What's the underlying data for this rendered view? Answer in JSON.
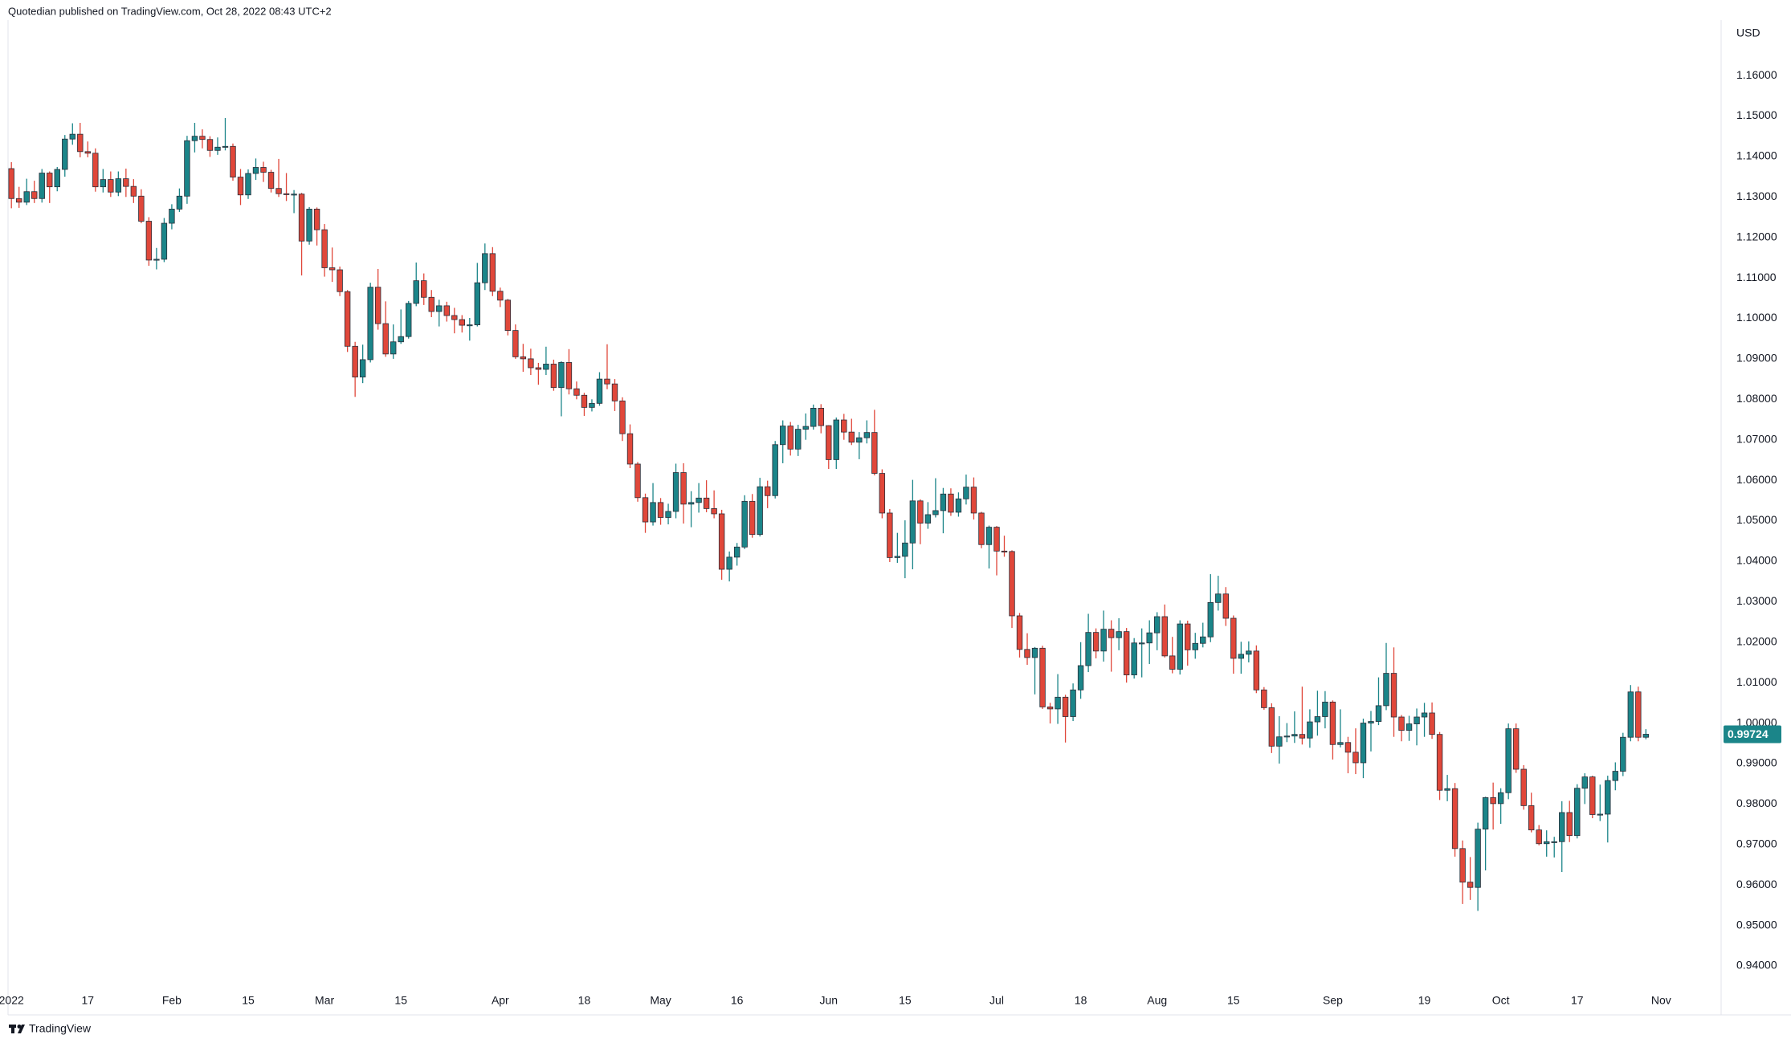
{
  "chart_data": {
    "type": "candlestick",
    "title": "Quotedian published on TradingView.com, Oct 28, 2022 08:43 UTC+2",
    "currency": "USD",
    "brand": "TradingView",
    "up_color": "#1b8589",
    "down_color": "#e0473a",
    "border_color": "#2a2e39",
    "grid": false,
    "ylim": [
      0.9279,
      1.1737
    ],
    "yticks": [
      {
        "value": 0.94,
        "label": "0.94000"
      },
      {
        "value": 0.95,
        "label": "0.95000"
      },
      {
        "value": 0.96,
        "label": "0.96000"
      },
      {
        "value": 0.97,
        "label": "0.97000"
      },
      {
        "value": 0.98,
        "label": "0.98000"
      },
      {
        "value": 0.99,
        "label": "0.99000"
      },
      {
        "value": 1.0,
        "label": "1.00000"
      },
      {
        "value": 1.01,
        "label": "1.01000"
      },
      {
        "value": 1.02,
        "label": "1.02000"
      },
      {
        "value": 1.03,
        "label": "1.03000"
      },
      {
        "value": 1.04,
        "label": "1.04000"
      },
      {
        "value": 1.05,
        "label": "1.05000"
      },
      {
        "value": 1.06,
        "label": "1.06000"
      },
      {
        "value": 1.07,
        "label": "1.07000"
      },
      {
        "value": 1.08,
        "label": "1.08000"
      },
      {
        "value": 1.09,
        "label": "1.09000"
      },
      {
        "value": 1.1,
        "label": "1.10000"
      },
      {
        "value": 1.11,
        "label": "1.11000"
      },
      {
        "value": 1.12,
        "label": "1.12000"
      },
      {
        "value": 1.13,
        "label": "1.13000"
      },
      {
        "value": 1.14,
        "label": "1.14000"
      },
      {
        "value": 1.15,
        "label": "1.15000"
      },
      {
        "value": 1.16,
        "label": "1.16000"
      }
    ],
    "categories": [
      "2022",
      null,
      null,
      null,
      null,
      null,
      null,
      null,
      null,
      null,
      "17",
      null,
      null,
      null,
      null,
      null,
      null,
      null,
      null,
      null,
      null,
      "Feb",
      null,
      null,
      null,
      null,
      null,
      null,
      null,
      null,
      null,
      "15",
      null,
      null,
      null,
      null,
      null,
      null,
      null,
      null,
      null,
      "Mar",
      null,
      null,
      null,
      null,
      null,
      null,
      null,
      null,
      null,
      "15",
      null,
      null,
      null,
      null,
      null,
      null,
      null,
      null,
      null,
      null,
      null,
      null,
      "Apr",
      null,
      null,
      null,
      null,
      null,
      null,
      null,
      null,
      null,
      null,
      "18",
      null,
      null,
      null,
      null,
      null,
      null,
      null,
      null,
      null,
      "May",
      null,
      null,
      null,
      null,
      null,
      null,
      null,
      null,
      null,
      "16",
      null,
      null,
      null,
      null,
      null,
      null,
      null,
      null,
      null,
      null,
      null,
      "Jun",
      null,
      null,
      null,
      null,
      null,
      null,
      null,
      null,
      null,
      "15",
      null,
      null,
      null,
      null,
      null,
      null,
      null,
      null,
      null,
      null,
      null,
      "Jul",
      null,
      null,
      null,
      null,
      null,
      null,
      null,
      null,
      null,
      null,
      "18",
      null,
      null,
      null,
      null,
      null,
      null,
      null,
      null,
      null,
      "Aug",
      null,
      null,
      null,
      null,
      null,
      null,
      null,
      null,
      null,
      "15",
      null,
      null,
      null,
      null,
      null,
      null,
      null,
      null,
      null,
      null,
      null,
      null,
      "Sep",
      null,
      null,
      null,
      null,
      null,
      null,
      null,
      null,
      null,
      null,
      null,
      "19",
      null,
      null,
      null,
      null,
      null,
      null,
      null,
      null,
      null,
      "Oct",
      null,
      null,
      null,
      null,
      null,
      null,
      null,
      null,
      null,
      "17",
      null,
      null,
      null,
      null,
      null,
      null,
      null,
      null,
      null,
      null,
      "Nov"
    ],
    "open": [
      1.137,
      1.1296,
      1.1287,
      1.1313,
      1.1296,
      1.1359,
      1.1325,
      1.1368,
      1.1443,
      1.1455,
      1.1412,
      1.1408,
      1.1325,
      1.1343,
      1.1312,
      1.1345,
      1.1326,
      1.1302,
      1.124,
      1.1144,
      1.1146,
      1.1235,
      1.127,
      1.1302,
      1.1439,
      1.145,
      1.1442,
      1.1415,
      1.1423,
      1.1425,
      1.1349,
      1.1305,
      1.1358,
      1.1373,
      1.1361,
      1.1321,
      1.1308,
      1.1307,
      1.1307,
      1.1191,
      1.127,
      1.1219,
      1.1125,
      1.112,
      1.1066,
      1.0931,
      1.0855,
      1.0898,
      1.1077,
      1.0987,
      1.0912,
      1.0942,
      1.0955,
      1.1037,
      1.1093,
      1.1052,
      1.1017,
      1.1031,
      1.1007,
      1.0997,
      1.0983,
      1.0984,
      1.1088,
      1.116,
      1.1067,
      1.1045,
      1.097,
      1.0905,
      1.09,
      1.0878,
      1.0874,
      1.0887,
      1.0829,
      1.0891,
      1.0826,
      1.081,
      1.078,
      1.079,
      1.085,
      1.0838,
      1.0796,
      1.0715,
      1.064,
      1.0557,
      1.0497,
      1.0545,
      1.0508,
      1.0523,
      1.0619,
      1.0541,
      1.0545,
      1.0556,
      1.053,
      1.0517,
      1.038,
      1.041,
      1.0435,
      1.0548,
      1.0466,
      1.0584,
      1.0562,
      1.0688,
      1.0734,
      1.0677,
      1.0726,
      1.0733,
      1.0778,
      1.0735,
      1.0651,
      1.0749,
      1.0719,
      1.0694,
      1.0705,
      1.0718,
      1.0617,
      1.0519,
      1.0409,
      1.0412,
      1.0445,
      1.0549,
      1.0494,
      1.0515,
      1.0525,
      1.0566,
      1.0521,
      1.0554,
      1.0583,
      1.0519,
      1.0441,
      1.0484,
      1.0425,
      1.0424,
      1.0265,
      1.0182,
      1.0162,
      1.0185,
      1.004,
      1.0035,
      1.0064,
      1.0016,
      1.0082,
      1.0142,
      1.0224,
      1.0178,
      1.0232,
      1.0211,
      1.0226,
      1.0119,
      1.0198,
      1.0198,
      1.0223,
      1.0263,
      1.0166,
      1.0133,
      1.0245,
      1.0181,
      1.0197,
      1.0213,
      1.0298,
      1.0319,
      1.0259,
      1.016,
      1.017,
      1.0178,
      1.0082,
      1.0038,
      0.9943,
      0.9966,
      0.9968,
      0.9972,
      0.9963,
      1.0003,
      1.0016,
      1.0052,
      0.9947,
      0.9952,
      0.9928,
      0.9902,
      1.0,
      1.0004,
      1.0043,
      1.0123,
      1.0015,
      0.9982,
      0.9998,
      1.0015,
      1.0025,
      0.9972,
      0.9834,
      0.9838,
      0.969,
      0.9607,
      0.9594,
      0.9738,
      0.9816,
      0.9801,
      0.9828,
      0.9986,
      0.9886,
      0.9796,
      0.9736,
      0.9702,
      0.9707,
      0.9707,
      0.9779,
      0.9722,
      0.9839,
      0.9867,
      0.9774,
      0.9775,
      0.9858,
      0.9881,
      0.9965,
      1.0077,
      0.9965,
      null,
      null
    ],
    "high": [
      1.1386,
      1.1325,
      1.1345,
      1.134,
      1.1369,
      1.1363,
      1.1374,
      1.1453,
      1.1482,
      1.1483,
      1.1437,
      1.142,
      1.1369,
      1.1363,
      1.1363,
      1.137,
      1.1344,
      1.1319,
      1.125,
      1.1174,
      1.1248,
      1.1282,
      1.1321,
      1.1451,
      1.1483,
      1.1467,
      1.145,
      1.1447,
      1.1495,
      1.1432,
      1.1369,
      1.1368,
      1.1395,
      1.1387,
      1.1367,
      1.1394,
      1.1359,
      1.1317,
      1.131,
      1.1275,
      1.1274,
      1.1233,
      1.1175,
      1.1128,
      1.107,
      1.0942,
      1.0935,
      1.1088,
      1.1122,
      1.1042,
      1.0985,
      1.1022,
      1.1043,
      1.1138,
      1.1111,
      1.107,
      1.1046,
      1.1041,
      1.1026,
      1.1008,
      1.1001,
      1.1137,
      1.1185,
      1.1176,
      1.1076,
      1.1048,
      1.0985,
      1.0937,
      1.0925,
      1.089,
      1.093,
      1.0898,
      1.0894,
      1.0924,
      1.0844,
      1.0816,
      1.08,
      1.0867,
      1.0936,
      1.085,
      1.0805,
      1.0738,
      1.0645,
      1.0567,
      1.0593,
      1.0556,
      1.0542,
      1.0641,
      1.0642,
      1.0573,
      1.0593,
      1.06,
      1.0575,
      1.0527,
      1.0424,
      1.0445,
      1.0563,
      1.0566,
      1.0606,
      1.0599,
      1.0697,
      1.0748,
      1.0744,
      1.0737,
      1.0765,
      1.0787,
      1.0788,
      1.0736,
      1.0755,
      1.0764,
      1.0752,
      1.0719,
      1.0748,
      1.0774,
      1.0627,
      1.0529,
      1.047,
      1.0501,
      1.0601,
      1.0553,
      1.0546,
      1.0605,
      1.0581,
      1.058,
      1.057,
      1.0614,
      1.0607,
      1.0522,
      1.0488,
      1.0487,
      1.0463,
      1.0427,
      1.0272,
      1.0222,
      1.0188,
      1.0191,
      1.005,
      1.0121,
      1.007,
      1.0098,
      1.02,
      1.027,
      1.0234,
      1.0278,
      1.0254,
      1.0259,
      1.0235,
      1.021,
      1.0234,
      1.0254,
      1.0274,
      1.0293,
      1.0213,
      1.0254,
      1.0253,
      1.0223,
      1.0248,
      1.0368,
      1.0364,
      1.0336,
      1.0266,
      1.0201,
      1.0202,
      1.0192,
      1.0089,
      1.0049,
      1.0017,
      1.0,
      1.0029,
      1.009,
      1.0034,
      1.008,
      1.0079,
      1.0056,
      1.0034,
      0.9966,
      0.9987,
      1.0011,
      1.003,
      1.0113,
      1.0198,
      1.0187,
      1.002,
      1.0018,
      1.0036,
      1.005,
      1.0051,
      0.9978,
      0.9872,
      0.9852,
      0.971,
      0.9669,
      0.9754,
      0.9818,
      0.9853,
      0.9839,
      0.9999,
      0.9999,
      0.9896,
      0.9828,
      0.9748,
      0.9735,
      0.9719,
      0.9807,
      0.9808,
      0.9849,
      0.9876,
      0.987,
      0.9848,
      0.987,
      0.9903,
      0.9976,
      1.0094,
      1.009,
      0.9985,
      null,
      null
    ],
    "low": [
      1.1272,
      1.1273,
      1.128,
      1.1285,
      1.1286,
      1.1285,
      1.1314,
      1.135,
      1.1429,
      1.1398,
      1.1398,
      1.1313,
      1.1311,
      1.13,
      1.1302,
      1.13,
      1.1285,
      1.1235,
      1.113,
      1.1121,
      1.1139,
      1.122,
      1.1263,
      1.1283,
      1.141,
      1.142,
      1.1399,
      1.1404,
      1.1415,
      1.134,
      1.128,
      1.1295,
      1.1342,
      1.1337,
      1.1311,
      1.13,
      1.129,
      1.126,
      1.1106,
      1.1182,
      1.118,
      1.1103,
      1.109,
      1.1055,
      1.0917,
      1.0806,
      1.084,
      1.0891,
      1.0972,
      1.0905,
      1.09,
      1.0937,
      1.095,
      1.103,
      1.1033,
      1.1003,
      1.098,
      1.0992,
      1.0963,
      1.0965,
      1.0945,
      1.098,
      1.107,
      1.1055,
      1.1028,
      1.0958,
      1.09,
      1.0868,
      1.086,
      1.0836,
      1.086,
      1.0821,
      1.0758,
      1.0812,
      1.08,
      1.0759,
      1.077,
      1.0784,
      1.0825,
      1.0771,
      1.0697,
      1.063,
      1.0547,
      1.047,
      1.0488,
      1.049,
      1.0491,
      1.0506,
      1.0493,
      1.0484,
      1.052,
      1.0521,
      1.0506,
      1.0354,
      1.035,
      1.0389,
      1.043,
      1.0458,
      1.0461,
      1.0531,
      1.0555,
      1.0642,
      1.0661,
      1.066,
      1.07,
      1.0725,
      1.0716,
      1.0628,
      1.0628,
      1.07,
      1.0687,
      1.0652,
      1.0691,
      1.0612,
      1.0506,
      1.0398,
      1.0396,
      1.0358,
      1.038,
      1.0442,
      1.048,
      1.0508,
      1.0469,
      1.0512,
      1.051,
      1.054,
      1.0503,
      1.0432,
      1.0382,
      1.0365,
      1.0411,
      1.0235,
      1.0162,
      1.0144,
      1.0071,
      1.0035,
      0.9999,
      0.9998,
      0.9952,
      1.0005,
      1.006,
      1.0126,
      1.016,
      1.0152,
      1.0127,
      1.018,
      1.01,
      1.011,
      1.0113,
      1.0146,
      1.018,
      1.0162,
      1.0123,
      1.012,
      1.0142,
      1.0159,
      1.0187,
      1.02,
      1.0278,
      1.024,
      1.0122,
      1.0122,
      1.015,
      1.0074,
      1.0033,
      0.9926,
      0.99,
      0.9953,
      0.9951,
      0.9947,
      0.9939,
      0.9969,
      0.9987,
      0.991,
      0.994,
      0.9876,
      0.9874,
      0.9864,
      0.993,
      0.9995,
      1.0032,
      0.9966,
      0.9955,
      0.9956,
      0.9945,
      0.9966,
      0.9961,
      0.981,
      0.9807,
      0.967,
      0.9553,
      0.9563,
      0.9536,
      0.9636,
      0.9737,
      0.9751,
      0.9812,
      0.9877,
      0.9786,
      0.973,
      0.9698,
      0.967,
      0.9668,
      0.9632,
      0.9706,
      0.9715,
      0.98,
      0.9765,
      0.9758,
      0.9705,
      0.9834,
      0.9869,
      0.9955,
      0.9955,
      0.996,
      null,
      null
    ],
    "close": [
      1.1296,
      1.1287,
      1.1313,
      1.1296,
      1.1359,
      1.1325,
      1.1368,
      1.1443,
      1.1455,
      1.1412,
      1.1408,
      1.1325,
      1.1343,
      1.1312,
      1.1345,
      1.1326,
      1.1302,
      1.124,
      1.1144,
      1.1146,
      1.1235,
      1.127,
      1.1302,
      1.1439,
      1.145,
      1.1442,
      1.1415,
      1.1423,
      1.1425,
      1.1349,
      1.1305,
      1.1358,
      1.1373,
      1.1361,
      1.1321,
      1.1308,
      1.1307,
      1.1307,
      1.1191,
      1.127,
      1.1219,
      1.1125,
      1.112,
      1.1066,
      1.0931,
      1.0855,
      1.0898,
      1.1077,
      1.0987,
      1.0912,
      1.0942,
      1.0955,
      1.1037,
      1.1093,
      1.1052,
      1.1017,
      1.1031,
      1.1007,
      1.0997,
      1.0983,
      1.0984,
      1.1088,
      1.116,
      1.1067,
      1.1045,
      1.097,
      1.0905,
      1.09,
      1.0878,
      1.0874,
      1.0887,
      1.0829,
      1.0891,
      1.0826,
      1.081,
      1.078,
      1.079,
      1.085,
      1.0838,
      1.0796,
      1.0715,
      1.064,
      1.0557,
      1.0497,
      1.0545,
      1.0508,
      1.0523,
      1.0619,
      1.0541,
      1.0545,
      1.0556,
      1.053,
      1.0517,
      1.038,
      1.041,
      1.0435,
      1.0548,
      1.0466,
      1.0584,
      1.0562,
      1.0688,
      1.0734,
      1.0677,
      1.0726,
      1.0733,
      1.0778,
      1.0735,
      1.0651,
      1.0749,
      1.0719,
      1.0694,
      1.0705,
      1.0718,
      1.0617,
      1.0519,
      1.0409,
      1.0412,
      1.0445,
      1.0549,
      1.0494,
      1.0515,
      1.0525,
      1.0566,
      1.0521,
      1.0554,
      1.0583,
      1.0519,
      1.0441,
      1.0484,
      1.0425,
      1.0424,
      1.0265,
      1.0182,
      1.0162,
      1.0185,
      1.004,
      1.0035,
      1.0064,
      1.0016,
      1.0082,
      1.0142,
      1.0224,
      1.0178,
      1.0232,
      1.0211,
      1.0226,
      1.0119,
      1.0198,
      1.0198,
      1.0223,
      1.0263,
      1.0166,
      1.0133,
      1.0245,
      1.0181,
      1.0197,
      1.0213,
      1.0298,
      1.0319,
      1.0259,
      1.016,
      1.017,
      1.0178,
      1.0082,
      1.0038,
      0.9943,
      0.9966,
      0.9968,
      0.9972,
      0.9963,
      1.0003,
      1.0016,
      1.0052,
      0.9947,
      0.9952,
      0.9928,
      0.9902,
      1.0,
      1.0004,
      1.0043,
      1.0123,
      1.0015,
      0.9982,
      0.9998,
      1.0015,
      1.0025,
      0.9972,
      0.9834,
      0.9838,
      0.969,
      0.9607,
      0.9594,
      0.9738,
      0.9816,
      0.9801,
      0.9828,
      0.9986,
      0.9886,
      0.9796,
      0.9736,
      0.9702,
      0.9707,
      0.9707,
      0.9779,
      0.9722,
      0.9839,
      0.9867,
      0.9774,
      0.9775,
      0.9858,
      0.9881,
      0.9965,
      1.0077,
      0.9965,
      0.99724,
      null,
      null
    ]
  }
}
